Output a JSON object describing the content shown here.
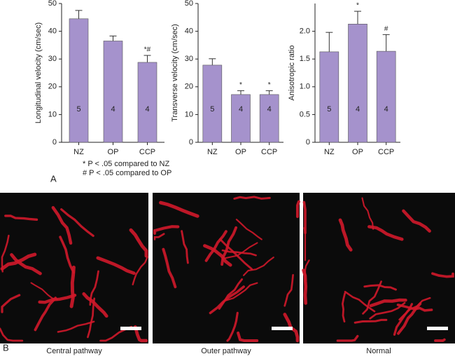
{
  "chart_data": [
    {
      "type": "bar",
      "ylabel": "Longitudinal velocity (cm/sec)",
      "categories": [
        "NZ",
        "OP",
        "CCP"
      ],
      "values": [
        44.5,
        36.5,
        28.8
      ],
      "errors": [
        3,
        1.8,
        2.5
      ],
      "bar_labels": [
        "5",
        "4",
        "4"
      ],
      "markers": [
        null,
        null,
        "*#"
      ],
      "color": "#a592cc",
      "ylim": [
        0,
        50
      ],
      "yticks": [
        0,
        10,
        20,
        30,
        40,
        50
      ]
    },
    {
      "type": "bar",
      "ylabel": "Transverse velocity (cm/sec)",
      "categories": [
        "NZ",
        "OP",
        "CCP"
      ],
      "values": [
        27.8,
        17.2,
        17.2
      ],
      "errors": [
        2.3,
        1.4,
        1.4
      ],
      "bar_labels": [
        "5",
        "4",
        "4"
      ],
      "markers": [
        null,
        "*",
        "*"
      ],
      "color": "#a592cc",
      "ylim": [
        0,
        50
      ],
      "yticks": [
        0,
        10,
        20,
        30,
        40,
        50
      ]
    },
    {
      "type": "bar",
      "ylabel": "Anisotropic ratio",
      "categories": [
        "NZ",
        "OP",
        "CCP"
      ],
      "values": [
        1.63,
        2.13,
        1.64
      ],
      "errors": [
        0.35,
        0.23,
        0.3
      ],
      "bar_labels": [
        "5",
        "4",
        "4"
      ],
      "markers": [
        null,
        "*",
        "#"
      ],
      "color": "#a592cc",
      "ylim": [
        0,
        2.5
      ],
      "yticks": [
        0,
        0.5,
        {
          "value": 1,
          "label": "1.0"
        },
        1.5,
        {
          "value": 2,
          "label": "2.0"
        }
      ]
    }
  ],
  "footnotes": [
    "* P < .05 compared to NZ",
    "# P < .05 compared to OP"
  ],
  "panel_labels": [
    "A",
    "B"
  ],
  "image_captions": [
    "Central pathway",
    "Outer pathway",
    "Normal"
  ]
}
